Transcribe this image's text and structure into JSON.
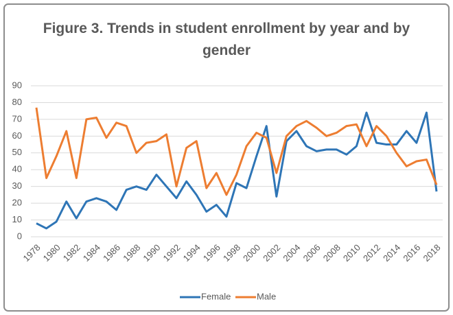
{
  "chart_data": {
    "type": "line",
    "title": "Figure 3. Trends in student enrollment by year and by gender",
    "categories": [
      "1978",
      null,
      "1980",
      null,
      "1982",
      null,
      "1984",
      null,
      "1986",
      null,
      "1988",
      null,
      "1990",
      null,
      "1992",
      null,
      "1994",
      null,
      "1996",
      null,
      "1998",
      null,
      "2000",
      null,
      "2002",
      null,
      "2004",
      null,
      "2006",
      null,
      "2008",
      null,
      "2010",
      null,
      "2012",
      null,
      "2014",
      null,
      "2016",
      null,
      "2018"
    ],
    "series": [
      {
        "name": "Female",
        "color": "#2e75b6",
        "values": [
          8,
          5,
          9,
          21,
          11,
          21,
          23,
          21,
          16,
          28,
          30,
          28,
          37,
          30,
          23,
          33,
          25,
          15,
          19,
          12,
          32,
          29,
          48,
          66,
          24,
          57,
          63,
          54,
          51,
          52,
          52,
          49,
          54,
          74,
          56,
          55,
          55,
          63,
          56,
          74,
          27
        ]
      },
      {
        "name": "Male",
        "color": "#ed7d31",
        "values": [
          77,
          35,
          48,
          63,
          35,
          70,
          71,
          59,
          68,
          66,
          50,
          56,
          57,
          61,
          30,
          53,
          57,
          29,
          38,
          25,
          37,
          54,
          62,
          59,
          38,
          60,
          66,
          69,
          65,
          60,
          62,
          66,
          67,
          54,
          66,
          60,
          50,
          42,
          45,
          46,
          31
        ]
      }
    ],
    "ylim": [
      0,
      90
    ],
    "yticks": [
      0,
      10,
      20,
      30,
      40,
      50,
      60,
      70,
      80,
      90
    ],
    "grid": true,
    "legend": "bottom"
  }
}
